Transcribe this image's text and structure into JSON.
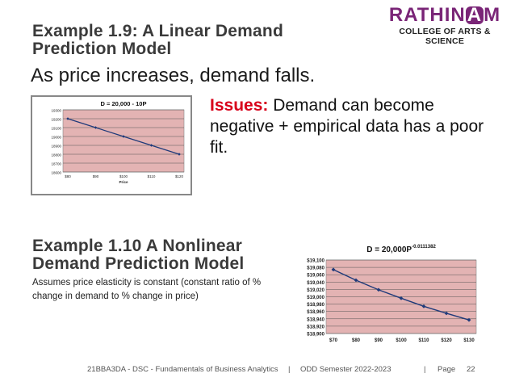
{
  "logo": {
    "brand_left": "RATHIN",
    "brand_mark": "A",
    "brand_right": "M",
    "college": "COLLEGE OF ARTS & SCIENCE"
  },
  "slide": {
    "title1": "Example 1.9:  A Linear Demand Prediction Model",
    "subtitle": "As price increases, demand falls.",
    "issues_label": "Issues:",
    "issues_text": " Demand can become negative + empirical data has a poor fit.",
    "title2": "Example 1.10 A Nonlinear Demand Prediction Model",
    "description": "Assumes price elasticity is constant (constant ratio of % change in demand to % change in price)"
  },
  "footer": {
    "course": "21BBA3DA - DSC - Fundamentals of Business Analytics",
    "sep1": "|",
    "semester": "ODD Semester 2022-2023",
    "sep2": "|",
    "page_label": "Page",
    "page_num": "22"
  },
  "colors": {
    "accent": "#7a2577",
    "issues": "#d8001a",
    "plot_bg": "#e3b3b3",
    "line": "#1f3a7a"
  },
  "chart_data": [
    {
      "type": "line",
      "title": "D = 20,000 - 10P",
      "xlabel": "Price",
      "ylabel": "",
      "categories": [
        "$80",
        "$90",
        "$100",
        "$110",
        "$120"
      ],
      "x": [
        80,
        90,
        100,
        110,
        120
      ],
      "values": [
        19200,
        19100,
        19000,
        18900,
        18800
      ],
      "ylim": [
        18600,
        19300
      ],
      "yticks": [
        "19300",
        "19200",
        "19100",
        "19000",
        "18900",
        "18800",
        "18700",
        "18600"
      ],
      "grid": true
    },
    {
      "type": "line",
      "title": "D = 20,000P",
      "title_exponent": "-0.0111382",
      "xlabel": "",
      "ylabel": "",
      "categories": [
        "$70",
        "$80",
        "$90",
        "$100",
        "$110",
        "$120",
        "$130"
      ],
      "x": [
        70,
        80,
        90,
        100,
        110,
        120,
        130
      ],
      "values": [
        19074,
        19045,
        19019,
        18996,
        18974,
        18955,
        18937
      ],
      "ylim": [
        18900,
        19100
      ],
      "yticks": [
        "$19,100",
        "$19,080",
        "$19,060",
        "$19,040",
        "$19,020",
        "$19,000",
        "$18,980",
        "$18,960",
        "$18,940",
        "$18,920",
        "$18,900"
      ],
      "grid": true
    }
  ]
}
